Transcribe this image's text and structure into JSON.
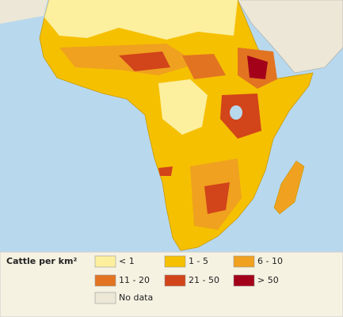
{
  "legend": {
    "title": "Cattle per km²",
    "items": [
      {
        "label": "< 1",
        "color": "#fcef9e"
      },
      {
        "label": "1 - 5",
        "color": "#f5c000"
      },
      {
        "label": "6 - 10",
        "color": "#efa11f"
      },
      {
        "label": "11 - 20",
        "color": "#e27421"
      },
      {
        "label": "21 - 50",
        "color": "#d2441a"
      },
      {
        "label": "> 50",
        "color": "#a3001a"
      },
      {
        "label": "No data",
        "color": "#ece7d6"
      }
    ]
  }
}
